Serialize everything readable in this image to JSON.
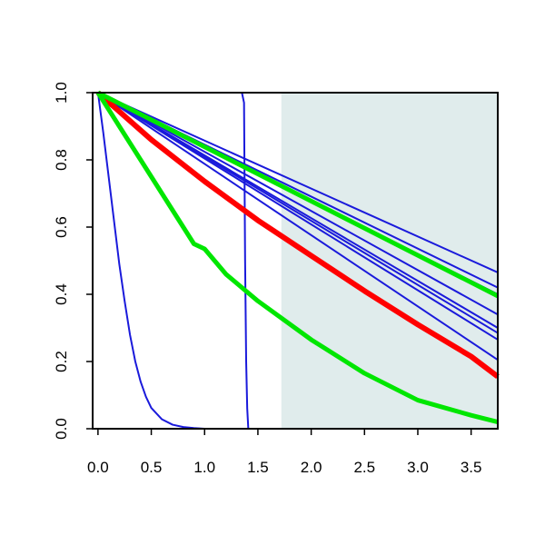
{
  "chart_data": {
    "type": "line",
    "title": "",
    "xlabel": "",
    "ylabel": "",
    "xlim": [
      -0.05,
      3.75
    ],
    "ylim": [
      0.0,
      1.0
    ],
    "x_ticks": [
      "0.0",
      "0.5",
      "1.0",
      "1.5",
      "2.0",
      "2.5",
      "3.0",
      "3.5"
    ],
    "y_ticks": [
      "0.0",
      "0.2",
      "0.4",
      "0.6",
      "0.8",
      "1.0"
    ],
    "grid": false,
    "legend": "none",
    "shaded_region": {
      "x_from": 1.72,
      "x_to": 3.75,
      "color": "#e0ecec"
    },
    "colors": {
      "blue": "#1a1adb",
      "red": "#ff0000",
      "green": "#00e600"
    },
    "series": [
      {
        "color": "#1a1adb",
        "width": 2,
        "points": [
          [
            0.0,
            1.0
          ],
          [
            3.75,
            0.465
          ]
        ]
      },
      {
        "color": "#1a1adb",
        "width": 2,
        "points": [
          [
            0.0,
            1.0
          ],
          [
            3.75,
            0.42
          ]
        ]
      },
      {
        "color": "#1a1adb",
        "width": 2,
        "points": [
          [
            0.0,
            1.0
          ],
          [
            3.75,
            0.4
          ]
        ]
      },
      {
        "color": "#1a1adb",
        "width": 2,
        "points": [
          [
            0.0,
            1.0
          ],
          [
            3.75,
            0.34
          ]
        ]
      },
      {
        "color": "#1a1adb",
        "width": 2,
        "points": [
          [
            0.0,
            1.0
          ],
          [
            3.75,
            0.3
          ]
        ]
      },
      {
        "color": "#1a1adb",
        "width": 2,
        "points": [
          [
            0.0,
            1.0
          ],
          [
            3.75,
            0.285
          ]
        ]
      },
      {
        "color": "#1a1adb",
        "width": 2,
        "points": [
          [
            0.0,
            1.0
          ],
          [
            3.75,
            0.265
          ]
        ]
      },
      {
        "color": "#1a1adb",
        "width": 2,
        "points": [
          [
            0.0,
            1.0
          ],
          [
            3.75,
            0.205
          ]
        ]
      },
      {
        "color": "#1a1adb",
        "width": 2,
        "points": [
          [
            0.0,
            1.0
          ],
          [
            0.05,
            0.88
          ],
          [
            0.1,
            0.75
          ],
          [
            0.15,
            0.62
          ],
          [
            0.2,
            0.49
          ],
          [
            0.25,
            0.38
          ],
          [
            0.3,
            0.28
          ],
          [
            0.35,
            0.2
          ],
          [
            0.4,
            0.14
          ],
          [
            0.45,
            0.095
          ],
          [
            0.5,
            0.062
          ],
          [
            0.6,
            0.028
          ],
          [
            0.7,
            0.012
          ],
          [
            0.8,
            0.005
          ],
          [
            0.9,
            0.002
          ],
          [
            1.0,
            0.0
          ],
          [
            3.75,
            0.0
          ]
        ]
      },
      {
        "color": "#1a1adb",
        "width": 2,
        "points": [
          [
            0.0,
            1.0
          ],
          [
            1.35,
            1.0
          ],
          [
            1.37,
            0.97
          ],
          [
            1.38,
            0.5
          ],
          [
            1.39,
            0.2
          ],
          [
            1.4,
            0.06
          ],
          [
            1.41,
            0.0
          ],
          [
            3.75,
            0.0
          ]
        ]
      },
      {
        "color": "#ff0000",
        "width": 6,
        "points": [
          [
            0.0,
            1.0
          ],
          [
            0.5,
            0.86
          ],
          [
            1.0,
            0.736
          ],
          [
            1.5,
            0.62
          ],
          [
            2.0,
            0.515
          ],
          [
            2.5,
            0.41
          ],
          [
            3.0,
            0.31
          ],
          [
            3.5,
            0.215
          ],
          [
            3.75,
            0.155
          ]
        ]
      },
      {
        "color": "#00e600",
        "width": 5,
        "points": [
          [
            0.0,
            1.0
          ],
          [
            3.75,
            0.395
          ]
        ]
      },
      {
        "color": "#00e600",
        "width": 5,
        "points": [
          [
            0.0,
            1.0
          ],
          [
            0.2,
            0.9
          ],
          [
            0.4,
            0.8
          ],
          [
            0.6,
            0.7
          ],
          [
            0.8,
            0.6
          ],
          [
            0.9,
            0.55
          ],
          [
            1.0,
            0.535
          ],
          [
            1.2,
            0.46
          ],
          [
            1.5,
            0.38
          ],
          [
            2.0,
            0.265
          ],
          [
            2.5,
            0.165
          ],
          [
            3.0,
            0.085
          ],
          [
            3.5,
            0.04
          ],
          [
            3.75,
            0.02
          ]
        ]
      }
    ]
  }
}
